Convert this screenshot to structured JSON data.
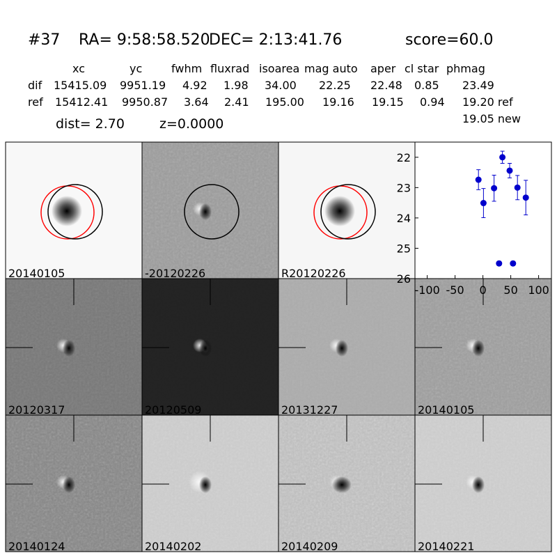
{
  "header": {
    "id": "#37",
    "ra": "RA= 9:58:58.520",
    "dec": "DEC= 2:13:41.76",
    "score": "score=60.0"
  },
  "table": {
    "columns": [
      "xc",
      "yc",
      "fwhm",
      "fluxrad",
      "isoarea",
      "mag auto",
      "aper",
      "cl star",
      "phmag"
    ],
    "rows": [
      [
        "dif",
        "15415.09",
        "9951.19",
        "4.92",
        "1.98",
        "34.00",
        "22.25",
        "22.48",
        "0.85",
        "23.49"
      ],
      [
        "ref",
        "15412.41",
        "9950.87",
        "3.64",
        "2.41",
        "195.00",
        "19.16",
        "19.15",
        "0.94",
        "19.20 ref"
      ]
    ],
    "extra": "19.05 new",
    "dist": "dist=  2.70",
    "z": "z=0.0000"
  },
  "panels": [
    {
      "label": "20140105"
    },
    {
      "label": "-20120226"
    },
    {
      "label": "R20120226"
    },
    {
      "label": "20120317"
    },
    {
      "label": "20120509"
    },
    {
      "label": "20131227"
    },
    {
      "label": "20140105",
      "color": "#ff0000"
    },
    {
      "label": "20140124"
    },
    {
      "label": "20140202"
    },
    {
      "label": "20140209"
    },
    {
      "label": "20140221"
    }
  ],
  "chart_data": {
    "type": "scatter",
    "color": "#0000cc",
    "x": [
      -8,
      1,
      20,
      35,
      48,
      62,
      77,
      29,
      54
    ],
    "values": [
      22.74,
      23.51,
      23.02,
      22.0,
      22.44,
      23.0,
      23.33,
      25.5,
      25.5
    ],
    "errors": [
      0.33,
      0.48,
      0.43,
      0.2,
      0.24,
      0.4,
      0.57,
      0.07,
      0.07
    ],
    "xlim": [
      -122,
      123
    ],
    "xticks": [
      -100,
      -50,
      0,
      50,
      100
    ],
    "ylim": [
      21.5,
      26
    ],
    "yticks": [
      22,
      23,
      24,
      25,
      26
    ],
    "y_inverted": true
  }
}
